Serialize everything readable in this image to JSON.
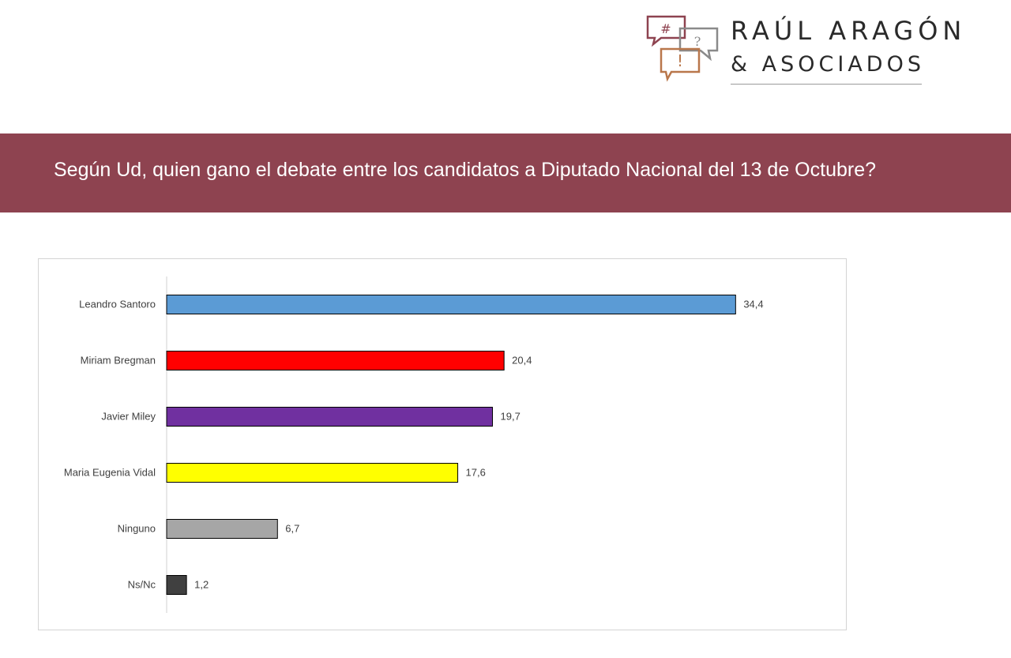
{
  "brand": {
    "name": "RAÚL ARAGÓN",
    "tagline": "& ASOCIADOS",
    "icon_glyphs": [
      "#",
      "?",
      "!"
    ],
    "colors": [
      "#8e4350",
      "#8a8a8a",
      "#b9774b"
    ]
  },
  "header": {
    "question": "Según Ud, quien gano el debate entre los candidatos a Diputado Nacional del 13 de Octubre?",
    "band_color": "#8e4350"
  },
  "chart_data": {
    "type": "bar",
    "orientation": "horizontal",
    "title": "",
    "xlabel": "",
    "ylabel": "",
    "grid": false,
    "legend": "none",
    "xlim": [
      0,
      36
    ],
    "categories": [
      "Leandro Santoro",
      "Miriam Bregman",
      "Javier Miley",
      "Maria Eugenia Vidal",
      "Ninguno",
      "Ns/Nc"
    ],
    "values": [
      34.4,
      20.4,
      19.7,
      17.6,
      6.7,
      1.2
    ],
    "value_labels": [
      "34,4",
      "20,4",
      "19,7",
      "17,6",
      "6,7",
      "1,2"
    ],
    "colors": [
      "#5b9bd5",
      "#ff0000",
      "#7030a0",
      "#ffff00",
      "#a6a6a6",
      "#404040"
    ]
  }
}
